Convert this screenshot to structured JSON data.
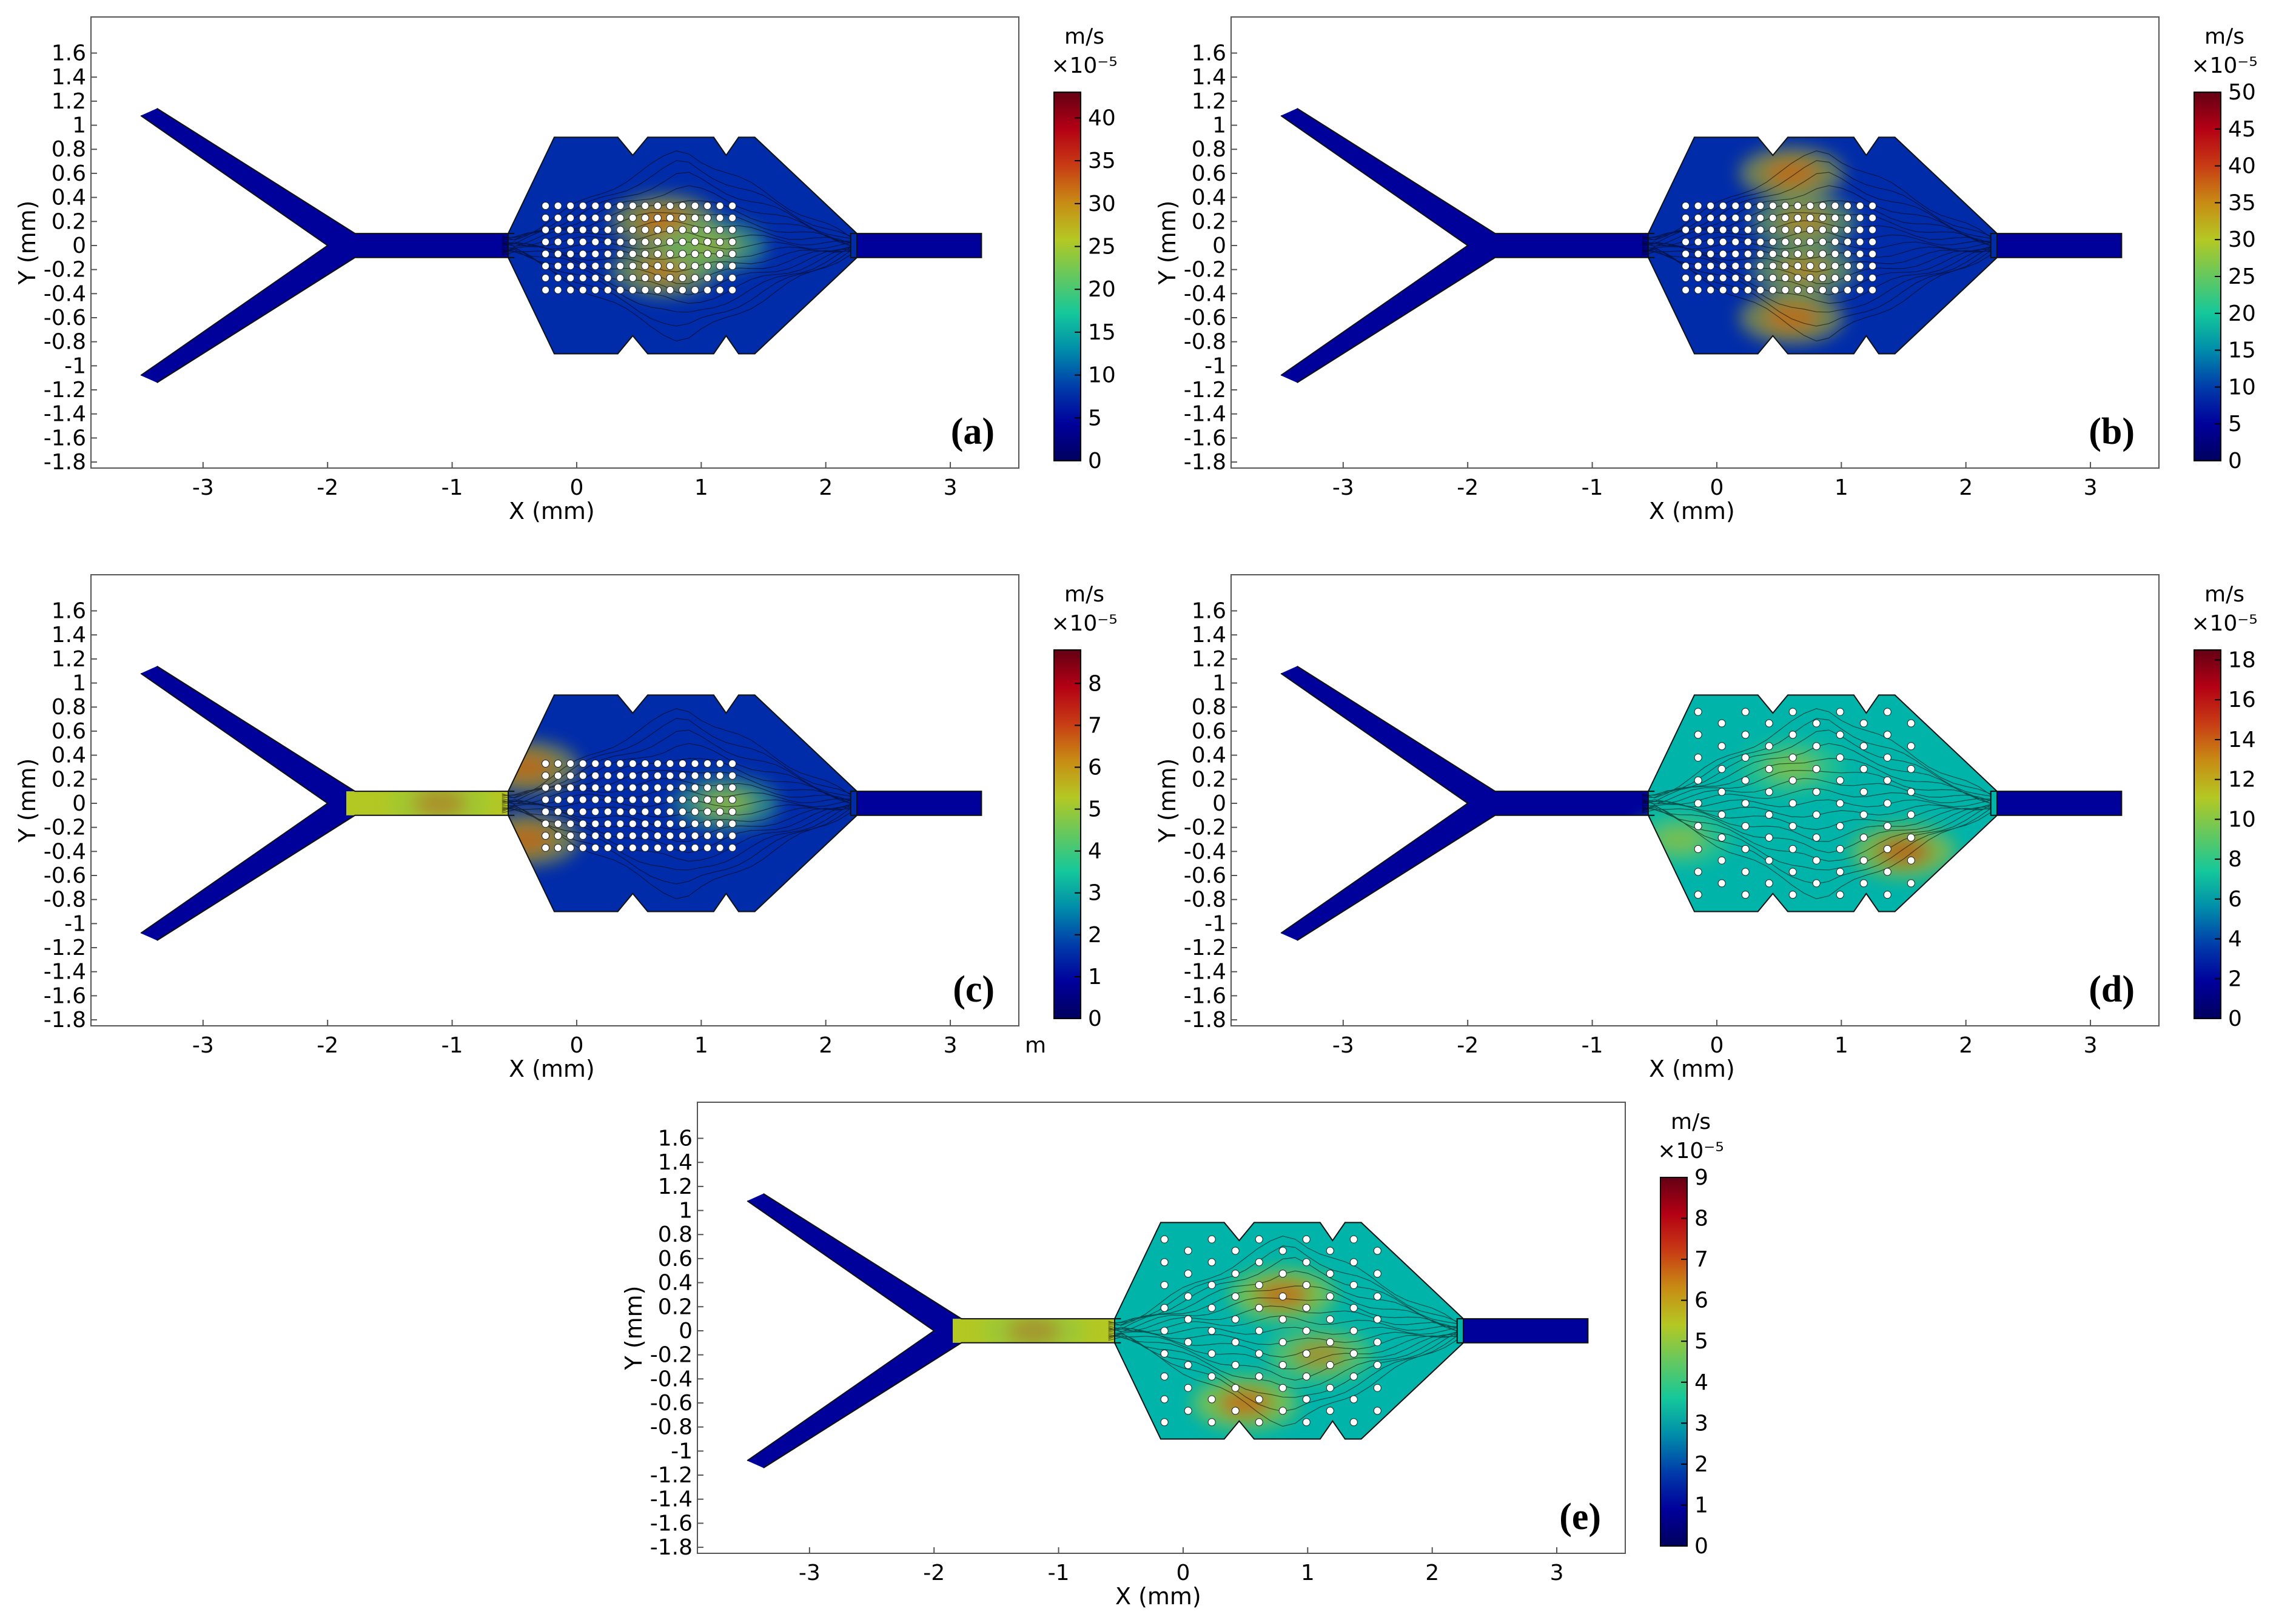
{
  "chart_data": [
    {
      "type": "heatmap",
      "panel_label": "(a)",
      "xlabel": "X (mm)",
      "ylabel": "Y (mm)",
      "xlim": [
        -3.9,
        3.55
      ],
      "ylim": [
        -1.85,
        1.9
      ],
      "xticks": [
        "-3",
        "-2",
        "-1",
        "0",
        "1",
        "2",
        "3"
      ],
      "yticks": [
        "1.6",
        "1.4",
        "1.2",
        "1",
        "0.8",
        "0.6",
        "0.4",
        "0.2",
        "0",
        "-0.2",
        "-0.4",
        "-0.6",
        "-0.8",
        "-1",
        "-1.2",
        "-1.4",
        "-1.6",
        "-1.8"
      ],
      "colorbar": {
        "unit": "m/s",
        "scale": "×10⁻⁵",
        "min": 0,
        "max": 43,
        "ticks": [
          "40",
          "35",
          "30",
          "25",
          "20",
          "15",
          "10",
          "5",
          "0"
        ]
      },
      "peak_regions": [
        {
          "x": 0.7,
          "y": 0.2,
          "v": 38
        },
        {
          "x": 0.7,
          "y": -0.2,
          "v": 36
        },
        {
          "x": 1.1,
          "y": 0.0,
          "v": 30
        }
      ],
      "pillars": "grid",
      "grid": false
    },
    {
      "type": "heatmap",
      "panel_label": "(b)",
      "xlabel": "X (mm)",
      "ylabel": "Y (mm)",
      "xlim": [
        -3.9,
        3.55
      ],
      "ylim": [
        -1.85,
        1.9
      ],
      "xticks": [
        "-3",
        "-2",
        "-1",
        "0",
        "1",
        "2",
        "3"
      ],
      "yticks": [
        "1.6",
        "1.4",
        "1.2",
        "1",
        "0.8",
        "0.6",
        "0.4",
        "0.2",
        "0",
        "-0.2",
        "-0.4",
        "-0.6",
        "-0.8",
        "-1",
        "-1.2",
        "-1.4",
        "-1.6",
        "-1.8"
      ],
      "colorbar": {
        "unit": "m/s",
        "scale": "×10⁻⁵",
        "min": 0,
        "max": 50,
        "ticks": [
          "50",
          "45",
          "40",
          "35",
          "30",
          "25",
          "20",
          "15",
          "10",
          "5",
          "0"
        ]
      },
      "peak_regions": [
        {
          "x": 0.6,
          "y": 0.6,
          "v": 45
        },
        {
          "x": 0.6,
          "y": -0.6,
          "v": 45
        },
        {
          "x": 0.7,
          "y": 0.2,
          "v": 40
        },
        {
          "x": 0.7,
          "y": -0.2,
          "v": 40
        }
      ],
      "pillars": "grid",
      "grid": false
    },
    {
      "type": "heatmap",
      "panel_label": "(c)",
      "xlabel": "X (mm)",
      "ylabel": "Y (mm)",
      "corner_note": "m",
      "xlim": [
        -3.9,
        3.55
      ],
      "ylim": [
        -1.85,
        1.9
      ],
      "xticks": [
        "-3",
        "-2",
        "-1",
        "0",
        "1",
        "2",
        "3"
      ],
      "yticks": [
        "1.6",
        "1.4",
        "1.2",
        "1",
        "0.8",
        "0.6",
        "0.4",
        "0.2",
        "0",
        "-0.2",
        "-0.4",
        "-0.6",
        "-0.8",
        "-1",
        "-1.2",
        "-1.4",
        "-1.6",
        "-1.8"
      ],
      "colorbar": {
        "unit": "m/s",
        "scale": "×10⁻⁵",
        "min": 0,
        "max": 8.8,
        "ticks": [
          "8",
          "7",
          "6",
          "5",
          "4",
          "3",
          "2",
          "1",
          "0"
        ]
      },
      "peak_regions": [
        {
          "x": -0.4,
          "y": 0.3,
          "v": 8
        },
        {
          "x": -0.4,
          "y": -0.3,
          "v": 8
        },
        {
          "x": -1.1,
          "y": 0.0,
          "v": 7
        },
        {
          "x": 1.2,
          "y": 0.0,
          "v": 6
        }
      ],
      "pillars": "grid",
      "grid": false
    },
    {
      "type": "heatmap",
      "panel_label": "(d)",
      "xlabel": "X (mm)",
      "ylabel": "Y (mm)",
      "xlim": [
        -3.9,
        3.55
      ],
      "ylim": [
        -1.85,
        1.9
      ],
      "xticks": [
        "-3",
        "-2",
        "-1",
        "0",
        "1",
        "2",
        "3"
      ],
      "yticks": [
        "1.6",
        "1.4",
        "1.2",
        "1",
        "0.8",
        "0.6",
        "0.4",
        "0.2",
        "0",
        "-0.2",
        "-0.4",
        "-0.6",
        "-0.8",
        "-1",
        "-1.2",
        "-1.4",
        "-1.6",
        "-1.8"
      ],
      "colorbar": {
        "unit": "m/s",
        "scale": "×10⁻⁵",
        "min": 0,
        "max": 18.5,
        "ticks": [
          "18",
          "16",
          "14",
          "12",
          "10",
          "8",
          "6",
          "4",
          "2",
          "0"
        ]
      },
      "peak_regions": [
        {
          "x": 1.5,
          "y": -0.4,
          "v": 17
        },
        {
          "x": -0.3,
          "y": -0.3,
          "v": 12
        },
        {
          "x": 0.6,
          "y": 0.3,
          "v": 12
        }
      ],
      "pillars": "staggered",
      "grid": false
    },
    {
      "type": "heatmap",
      "panel_label": "(e)",
      "xlabel": "X (mm)",
      "ylabel": "Y (mm)",
      "xlim": [
        -3.9,
        3.55
      ],
      "ylim": [
        -1.85,
        1.9
      ],
      "xticks": [
        "-3",
        "-2",
        "-1",
        "0",
        "1",
        "2",
        "3"
      ],
      "yticks": [
        "1.6",
        "1.4",
        "1.2",
        "1",
        "0.8",
        "0.6",
        "0.4",
        "0.2",
        "0",
        "-0.2",
        "-0.4",
        "-0.6",
        "-0.8",
        "-1",
        "-1.2",
        "-1.4",
        "-1.6",
        "-1.8"
      ],
      "colorbar": {
        "unit": "m/s",
        "scale": "×10⁻⁵",
        "min": 0,
        "max": 9,
        "ticks": [
          "9",
          "8",
          "7",
          "6",
          "5",
          "4",
          "3",
          "2",
          "1",
          "0"
        ]
      },
      "peak_regions": [
        {
          "x": 0.5,
          "y": -0.6,
          "v": 8
        },
        {
          "x": 0.8,
          "y": 0.3,
          "v": 8
        },
        {
          "x": -1.2,
          "y": 0.0,
          "v": 7
        },
        {
          "x": 1.1,
          "y": -0.2,
          "v": 7
        }
      ],
      "pillars": "staggered",
      "grid": false
    }
  ]
}
